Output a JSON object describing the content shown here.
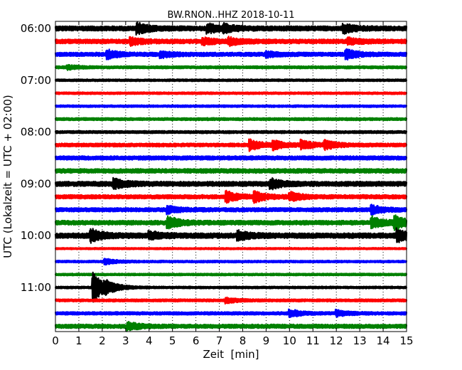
{
  "chart_data": {
    "type": "line",
    "title": "BW.RNON..HHZ 2018-10-11",
    "xlabel": "Zeit  [min]",
    "ylabel": "UTC (Lokalzeit = UTC + 02:00)",
    "xlim": [
      0,
      15
    ],
    "x_ticks": [
      "0",
      "1",
      "2",
      "3",
      "4",
      "5",
      "6",
      "7",
      "8",
      "9",
      "10",
      "11",
      "12",
      "13",
      "14",
      "15"
    ],
    "y_ticks": [
      "06:00",
      "07:00",
      "08:00",
      "09:00",
      "10:00",
      "11:00"
    ],
    "grid": true,
    "trace_colors": [
      "#000000",
      "#ff0000",
      "#0000ff",
      "#008000"
    ],
    "traces": [
      {
        "start": "06:00",
        "amp": 0.55,
        "events": [
          {
            "t": 3.5,
            "a": 1.0
          },
          {
            "t": 6.5,
            "a": 0.9
          },
          {
            "t": 7.2,
            "a": 0.6
          },
          {
            "t": 12.3,
            "a": 0.9
          }
        ]
      },
      {
        "start": "06:15",
        "amp": 0.5,
        "events": [
          {
            "t": 3.2,
            "a": 0.7
          },
          {
            "t": 6.3,
            "a": 0.6
          },
          {
            "t": 7.4,
            "a": 0.7
          },
          {
            "t": 12.5,
            "a": 0.6
          }
        ]
      },
      {
        "start": "06:30",
        "amp": 0.45,
        "events": [
          {
            "t": 2.2,
            "a": 0.9
          },
          {
            "t": 4.5,
            "a": 0.6
          },
          {
            "t": 9.0,
            "a": 0.5
          },
          {
            "t": 12.4,
            "a": 1.0
          }
        ]
      },
      {
        "start": "06:45",
        "amp": 0.3,
        "events": [
          {
            "t": 0.5,
            "a": 0.4
          }
        ]
      },
      {
        "start": "07:00",
        "amp": 0.25,
        "events": []
      },
      {
        "start": "07:15",
        "amp": 0.25,
        "events": []
      },
      {
        "start": "07:30",
        "amp": 0.25,
        "events": []
      },
      {
        "start": "07:45",
        "amp": 0.3,
        "events": []
      },
      {
        "start": "08:00",
        "amp": 0.3,
        "events": []
      },
      {
        "start": "08:15",
        "amp": 0.4,
        "events": [
          {
            "t": 8.3,
            "a": 1.1
          },
          {
            "t": 9.3,
            "a": 0.9
          },
          {
            "t": 10.5,
            "a": 0.9
          },
          {
            "t": 11.5,
            "a": 0.9
          }
        ]
      },
      {
        "start": "08:30",
        "amp": 0.45,
        "events": []
      },
      {
        "start": "08:45",
        "amp": 0.5,
        "events": []
      },
      {
        "start": "09:00",
        "amp": 0.55,
        "events": [
          {
            "t": 2.5,
            "a": 1.0
          },
          {
            "t": 9.2,
            "a": 1.0
          }
        ]
      },
      {
        "start": "09:15",
        "amp": 0.45,
        "events": [
          {
            "t": 7.3,
            "a": 1.1
          },
          {
            "t": 8.5,
            "a": 1.0
          },
          {
            "t": 10.0,
            "a": 0.9
          }
        ]
      },
      {
        "start": "09:30",
        "amp": 0.45,
        "events": [
          {
            "t": 4.8,
            "a": 0.7
          },
          {
            "t": 13.5,
            "a": 0.9
          }
        ]
      },
      {
        "start": "09:45",
        "amp": 0.5,
        "events": [
          {
            "t": 4.8,
            "a": 1.3
          },
          {
            "t": 13.5,
            "a": 1.2
          },
          {
            "t": 14.5,
            "a": 1.3
          }
        ]
      },
      {
        "start": "10:00",
        "amp": 0.6,
        "events": [
          {
            "t": 1.5,
            "a": 1.3
          },
          {
            "t": 4.0,
            "a": 0.8
          },
          {
            "t": 7.8,
            "a": 0.8
          },
          {
            "t": 14.6,
            "a": 1.2
          }
        ]
      },
      {
        "start": "10:15",
        "amp": 0.2,
        "events": []
      },
      {
        "start": "10:30",
        "amp": 0.25,
        "events": [
          {
            "t": 2.1,
            "a": 0.6
          }
        ]
      },
      {
        "start": "10:45",
        "amp": 0.25,
        "events": []
      },
      {
        "start": "11:00",
        "amp": 0.25,
        "events": [
          {
            "t": 1.6,
            "a": 3.5
          },
          {
            "t": 2.1,
            "a": 0.8
          }
        ]
      },
      {
        "start": "11:15",
        "amp": 0.3,
        "events": [
          {
            "t": 7.3,
            "a": 0.5
          }
        ]
      },
      {
        "start": "11:30",
        "amp": 0.35,
        "events": [
          {
            "t": 10.0,
            "a": 0.8
          },
          {
            "t": 12.0,
            "a": 0.6
          }
        ]
      },
      {
        "start": "11:45",
        "amp": 0.45,
        "events": [
          {
            "t": 3.1,
            "a": 0.8
          }
        ]
      }
    ]
  }
}
